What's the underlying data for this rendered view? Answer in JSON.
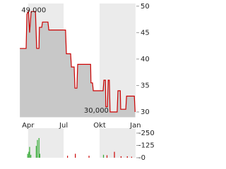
{
  "chart_data": [
    {
      "type": "area-line",
      "color": "#cc0000",
      "fill": "#c8c8c8",
      "band_color": "#ebebeb",
      "x": [
        2,
        18,
        20,
        24,
        27,
        31,
        42,
        45,
        51,
        52,
        58,
        60,
        74,
        76,
        119,
        121,
        132,
        134,
        141,
        143,
        148,
        150,
        183,
        184,
        188,
        190,
        215,
        217,
        221,
        222,
        226,
        228,
        231,
        233,
        251,
        253,
        259,
        260,
        273,
        275,
        295,
        297
      ],
      "values": [
        42,
        42,
        48.5,
        49,
        45,
        49,
        49,
        42,
        42,
        46,
        46,
        47,
        47,
        45.5,
        45.5,
        41,
        41,
        38.5,
        38.5,
        34.5,
        34.5,
        39,
        39,
        35.5,
        35.5,
        34,
        34,
        36,
        36,
        31,
        31,
        36,
        36,
        30,
        30,
        34,
        34,
        30.5,
        30.5,
        33,
        33,
        30
      ],
      "xlim": [
        0,
        300
      ],
      "xticks": [
        {
          "value": 23,
          "label": "Apr"
        },
        {
          "value": 114,
          "label": "Jul"
        },
        {
          "value": 206,
          "label": "Okt"
        },
        {
          "value": 298,
          "label": "Jan"
        }
      ],
      "ylim": [
        29,
        50.5
      ],
      "yticks": [
        30,
        35,
        40,
        45,
        50
      ],
      "annotations": [
        {
          "x": 24,
          "y": 49,
          "label": "49,000"
        },
        {
          "x": 233,
          "y": 30,
          "label": "30,000"
        }
      ]
    },
    {
      "type": "bar",
      "x": [
        22,
        25,
        27,
        30,
        44,
        47,
        51,
        53,
        124,
        144,
        179,
        216,
        225,
        244,
        261,
        277,
        288
      ],
      "values": [
        40,
        60,
        110,
        30,
        120,
        180,
        200,
        40,
        20,
        40,
        20,
        30,
        25,
        60,
        15,
        15,
        10
      ],
      "colors": [
        "#33aa33",
        "#33aa33",
        "#33aa33",
        "#33aa33",
        "#33aa33",
        "#33aa33",
        "#33aa33",
        "#33aa33",
        "#cc0000",
        "#cc0000",
        "#cc0000",
        "#33aa33",
        "#cc0000",
        "#cc0000",
        "#cc0000",
        "#cc0000",
        "#cc0000"
      ],
      "xlim": [
        0,
        300
      ],
      "ylim": [
        0,
        300
      ],
      "yticks": [
        {
          "value": 250,
          "label": "-250"
        },
        {
          "value": 125,
          "label": "-125"
        },
        {
          "value": 0,
          "label": "-0"
        }
      ]
    }
  ]
}
